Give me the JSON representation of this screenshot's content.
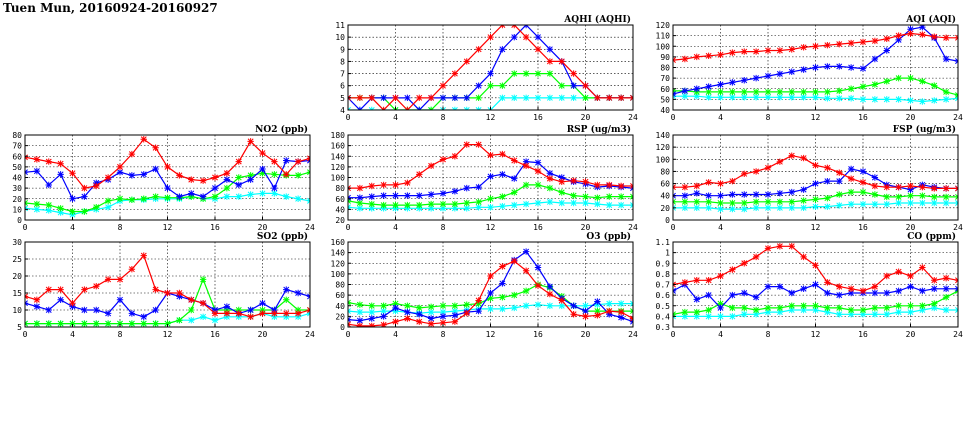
{
  "page": {
    "title": "Tuen Mun, 20160924-20160927"
  },
  "colors": {
    "red": "#ff0000",
    "blue": "#0000ff",
    "green": "#00ff00",
    "cyan": "#00ffff",
    "grid": "#000000"
  },
  "chart_data": [
    {
      "type": "line",
      "title": "AQHI (AQHI)",
      "xlim": [
        0,
        24
      ],
      "ylim": [
        4,
        11
      ],
      "xticks": [
        0,
        4,
        8,
        12,
        16,
        20,
        24
      ],
      "yticks": [
        4,
        5,
        6,
        7,
        8,
        9,
        10,
        11
      ],
      "grid": true,
      "series": [
        {
          "color": "#ff0000",
          "values": [
            5,
            5,
            5,
            4,
            5,
            4,
            5,
            5,
            6,
            7,
            8,
            9,
            10,
            11,
            11,
            10,
            9,
            8,
            8,
            7,
            6,
            5,
            5,
            5,
            5
          ]
        },
        {
          "color": "#0000ff",
          "values": [
            5,
            4,
            5,
            5,
            5,
            5,
            4,
            5,
            5,
            5,
            5,
            6,
            7,
            9,
            10,
            11,
            10,
            9,
            8,
            6,
            6,
            5,
            5,
            5,
            5
          ]
        },
        {
          "color": "#00ff00",
          "values": [
            5,
            5,
            5,
            5,
            4,
            4,
            4,
            4,
            5,
            5,
            5,
            5,
            6,
            6,
            7,
            7,
            7,
            7,
            6,
            6,
            5,
            5,
            5,
            5,
            5
          ]
        },
        {
          "color": "#00ffff",
          "values": [
            4,
            4,
            4,
            4,
            4,
            4,
            4,
            4,
            4,
            4,
            4,
            4,
            4,
            5,
            5,
            5,
            5,
            5,
            5,
            5,
            5,
            5,
            5,
            5,
            5
          ]
        }
      ]
    },
    {
      "type": "line",
      "title": "AQI (AQI)",
      "xlim": [
        0,
        24
      ],
      "ylim": [
        40,
        120
      ],
      "xticks": [
        0,
        4,
        8,
        12,
        16,
        20,
        24
      ],
      "yticks": [
        40,
        50,
        60,
        70,
        80,
        90,
        100,
        110,
        120
      ],
      "grid": true,
      "series": [
        {
          "color": "#ff0000",
          "values": [
            87,
            88,
            90,
            91,
            92,
            94,
            95,
            95,
            96,
            96,
            97,
            99,
            100,
            101,
            102,
            103,
            104,
            105,
            107,
            110,
            112,
            111,
            109,
            108,
            108
          ]
        },
        {
          "color": "#0000ff",
          "values": [
            55,
            58,
            60,
            62,
            64,
            66,
            68,
            70,
            72,
            74,
            76,
            78,
            80,
            81,
            81,
            80,
            79,
            88,
            96,
            106,
            116,
            118,
            108,
            88,
            86
          ]
        },
        {
          "color": "#00ff00",
          "values": [
            58,
            58,
            57,
            57,
            57,
            57,
            57,
            57,
            57,
            57,
            57,
            57,
            57,
            57,
            58,
            60,
            62,
            64,
            67,
            70,
            70,
            67,
            63,
            57,
            54
          ]
        },
        {
          "color": "#00ffff",
          "values": [
            53,
            53,
            53,
            52,
            52,
            52,
            52,
            52,
            52,
            52,
            52,
            52,
            52,
            51,
            51,
            51,
            50,
            50,
            50,
            50,
            49,
            48,
            49,
            50,
            51
          ]
        }
      ]
    },
    {
      "type": "line",
      "title": "NO2 (ppb)",
      "xlim": [
        0,
        24
      ],
      "ylim": [
        0,
        80
      ],
      "xticks": [
        0,
        4,
        8,
        12,
        16,
        20,
        24
      ],
      "yticks": [
        0,
        10,
        20,
        30,
        40,
        50,
        60,
        70,
        80
      ],
      "grid": true,
      "series": [
        {
          "color": "#ff0000",
          "values": [
            59,
            57,
            55,
            53,
            44,
            30,
            32,
            40,
            50,
            62,
            76,
            68,
            50,
            42,
            38,
            37,
            40,
            44,
            55,
            74,
            63,
            55,
            43,
            55,
            58
          ]
        },
        {
          "color": "#0000ff",
          "values": [
            45,
            46,
            33,
            43,
            20,
            22,
            35,
            38,
            45,
            42,
            43,
            48,
            30,
            22,
            25,
            22,
            30,
            38,
            33,
            38,
            48,
            30,
            56,
            55,
            56
          ]
        },
        {
          "color": "#00ff00",
          "values": [
            16,
            15,
            14,
            11,
            8,
            8,
            12,
            18,
            20,
            19,
            20,
            22,
            21,
            21,
            22,
            20,
            22,
            30,
            40,
            42,
            44,
            43,
            42,
            42,
            45
          ]
        },
        {
          "color": "#00ffff",
          "values": [
            11,
            10,
            9,
            7,
            5,
            8,
            10,
            12,
            18,
            19,
            19,
            20,
            20,
            20,
            22,
            20,
            20,
            22,
            22,
            24,
            25,
            25,
            22,
            20,
            18
          ]
        }
      ]
    },
    {
      "type": "line",
      "title": "RSP (ug/m3)",
      "xlim": [
        0,
        24
      ],
      "ylim": [
        20,
        180
      ],
      "xticks": [
        0,
        4,
        8,
        12,
        16,
        20,
        24
      ],
      "yticks": [
        20,
        40,
        60,
        80,
        100,
        120,
        140,
        160,
        180
      ],
      "grid": true,
      "series": [
        {
          "color": "#ff0000",
          "values": [
            80,
            80,
            84,
            86,
            86,
            90,
            106,
            122,
            134,
            140,
            162,
            162,
            142,
            144,
            132,
            122,
            112,
            98,
            92,
            94,
            92,
            86,
            86,
            84,
            84
          ]
        },
        {
          "color": "#0000ff",
          "values": [
            62,
            62,
            64,
            66,
            66,
            66,
            66,
            68,
            70,
            74,
            80,
            82,
            102,
            106,
            98,
            130,
            128,
            108,
            100,
            92,
            88,
            82,
            84,
            82,
            80
          ]
        },
        {
          "color": "#00ff00",
          "values": [
            56,
            52,
            50,
            48,
            48,
            48,
            48,
            50,
            50,
            50,
            52,
            54,
            60,
            64,
            72,
            86,
            86,
            80,
            72,
            66,
            64,
            62,
            64,
            64,
            64
          ]
        },
        {
          "color": "#00ffff",
          "values": [
            44,
            42,
            42,
            42,
            42,
            42,
            42,
            42,
            42,
            42,
            42,
            44,
            44,
            46,
            48,
            50,
            52,
            54,
            52,
            52,
            52,
            50,
            48,
            48,
            48
          ]
        }
      ]
    },
    {
      "type": "line",
      "title": "FSP (ug/m3)",
      "xlim": [
        0,
        24
      ],
      "ylim": [
        0,
        140
      ],
      "xticks": [
        0,
        4,
        8,
        12,
        16,
        20,
        24
      ],
      "yticks": [
        0,
        20,
        40,
        60,
        80,
        100,
        120,
        140
      ],
      "grid": true,
      "series": [
        {
          "color": "#ff0000",
          "values": [
            54,
            54,
            56,
            62,
            60,
            64,
            76,
            80,
            86,
            96,
            106,
            102,
            90,
            86,
            78,
            68,
            62,
            56,
            54,
            54,
            56,
            54,
            52,
            52,
            52
          ]
        },
        {
          "color": "#0000ff",
          "values": [
            40,
            40,
            44,
            40,
            40,
            42,
            42,
            42,
            42,
            44,
            46,
            50,
            60,
            64,
            64,
            84,
            80,
            70,
            58,
            54,
            50,
            58,
            54,
            52,
            52
          ]
        },
        {
          "color": "#00ff00",
          "values": [
            30,
            30,
            30,
            30,
            28,
            28,
            28,
            30,
            30,
            30,
            30,
            32,
            34,
            36,
            42,
            46,
            46,
            42,
            38,
            38,
            40,
            40,
            38,
            38,
            38
          ]
        },
        {
          "color": "#00ffff",
          "values": [
            20,
            20,
            20,
            20,
            18,
            18,
            18,
            20,
            20,
            20,
            20,
            20,
            22,
            22,
            24,
            26,
            26,
            26,
            26,
            28,
            28,
            28,
            28,
            28,
            28
          ]
        }
      ]
    },
    {
      "type": "line",
      "title": "SO2 (ppb)",
      "xlim": [
        0,
        24
      ],
      "ylim": [
        5,
        30
      ],
      "xticks": [
        0,
        4,
        8,
        12,
        16,
        20,
        24
      ],
      "yticks": [
        5,
        10,
        15,
        20,
        25,
        30
      ],
      "grid": true,
      "series": [
        {
          "color": "#ff0000",
          "values": [
            14,
            13,
            16,
            16,
            12,
            16,
            17,
            19,
            19,
            22,
            26,
            16,
            15,
            15,
            13,
            12,
            9,
            9,
            9,
            8,
            9,
            9,
            9,
            9,
            10
          ]
        },
        {
          "color": "#0000ff",
          "values": [
            12,
            11,
            10,
            13,
            11,
            10,
            10,
            9,
            13,
            9,
            8,
            10,
            15,
            14,
            13,
            12,
            10,
            11,
            9,
            10,
            12,
            10,
            16,
            15,
            14
          ]
        },
        {
          "color": "#00ff00",
          "values": [
            6,
            6,
            6,
            6,
            6,
            6,
            6,
            6,
            6,
            6,
            6,
            6,
            6,
            7,
            10,
            19,
            10,
            10,
            10,
            10,
            10,
            10,
            13,
            10,
            10
          ]
        },
        {
          "color": "#00ffff",
          "values": [
            6,
            6,
            6,
            6,
            6,
            6,
            6,
            6,
            6,
            6,
            6,
            6,
            6,
            7,
            7,
            8,
            7,
            8,
            8,
            8,
            9,
            8,
            8,
            8,
            9
          ]
        }
      ]
    },
    {
      "type": "line",
      "title": "O3 (ppb)",
      "xlim": [
        0,
        24
      ],
      "ylim": [
        0,
        160
      ],
      "xticks": [
        0,
        4,
        8,
        12,
        16,
        20,
        24
      ],
      "yticks": [
        0,
        20,
        40,
        60,
        80,
        100,
        120,
        140,
        160
      ],
      "grid": true,
      "series": [
        {
          "color": "#ff0000",
          "values": [
            5,
            2,
            2,
            4,
            10,
            16,
            10,
            6,
            8,
            10,
            26,
            50,
            96,
            114,
            124,
            106,
            78,
            62,
            50,
            24,
            20,
            22,
            30,
            28,
            16
          ]
        },
        {
          "color": "#0000ff",
          "values": [
            14,
            12,
            16,
            20,
            36,
            28,
            24,
            16,
            20,
            22,
            28,
            30,
            64,
            82,
            126,
            142,
            112,
            76,
            54,
            40,
            30,
            48,
            24,
            18,
            10
          ]
        },
        {
          "color": "#00ff00",
          "values": [
            46,
            42,
            40,
            40,
            44,
            40,
            36,
            38,
            40,
            40,
            42,
            44,
            54,
            56,
            60,
            68,
            80,
            74,
            58,
            40,
            30,
            30,
            30,
            30,
            30
          ]
        },
        {
          "color": "#00ffff",
          "values": [
            30,
            28,
            28,
            30,
            30,
            28,
            26,
            28,
            28,
            30,
            32,
            34,
            34,
            34,
            36,
            40,
            42,
            40,
            40,
            40,
            40,
            42,
            44,
            44,
            44
          ]
        }
      ]
    },
    {
      "type": "line",
      "title": "CO (ppm)",
      "xlim": [
        0,
        24
      ],
      "ylim": [
        0.3,
        1.1
      ],
      "xticks": [
        0,
        4,
        8,
        12,
        16,
        20,
        24
      ],
      "yticks": [
        0.3,
        0.4,
        0.5,
        0.6,
        0.7,
        0.8,
        0.9,
        1.0,
        1.1
      ],
      "grid": true,
      "series": [
        {
          "color": "#ff0000",
          "values": [
            0.7,
            0.72,
            0.74,
            0.74,
            0.78,
            0.84,
            0.9,
            0.96,
            1.04,
            1.06,
            1.06,
            0.96,
            0.88,
            0.72,
            0.68,
            0.66,
            0.64,
            0.68,
            0.78,
            0.82,
            0.78,
            0.86,
            0.74,
            0.76,
            0.74
          ]
        },
        {
          "color": "#0000ff",
          "values": [
            0.64,
            0.7,
            0.56,
            0.6,
            0.48,
            0.6,
            0.62,
            0.58,
            0.68,
            0.68,
            0.62,
            0.66,
            0.7,
            0.62,
            0.6,
            0.62,
            0.62,
            0.62,
            0.62,
            0.64,
            0.68,
            0.64,
            0.66,
            0.66,
            0.66
          ]
        },
        {
          "color": "#00ff00",
          "values": [
            0.42,
            0.44,
            0.44,
            0.46,
            0.52,
            0.48,
            0.48,
            0.46,
            0.48,
            0.48,
            0.5,
            0.5,
            0.5,
            0.48,
            0.48,
            0.46,
            0.46,
            0.48,
            0.48,
            0.5,
            0.5,
            0.5,
            0.52,
            0.58,
            0.64
          ]
        },
        {
          "color": "#00ffff",
          "values": [
            0.4,
            0.4,
            0.4,
            0.4,
            0.4,
            0.4,
            0.42,
            0.42,
            0.44,
            0.44,
            0.46,
            0.46,
            0.46,
            0.44,
            0.42,
            0.42,
            0.42,
            0.42,
            0.42,
            0.44,
            0.44,
            0.46,
            0.48,
            0.46,
            0.46
          ]
        }
      ]
    }
  ]
}
